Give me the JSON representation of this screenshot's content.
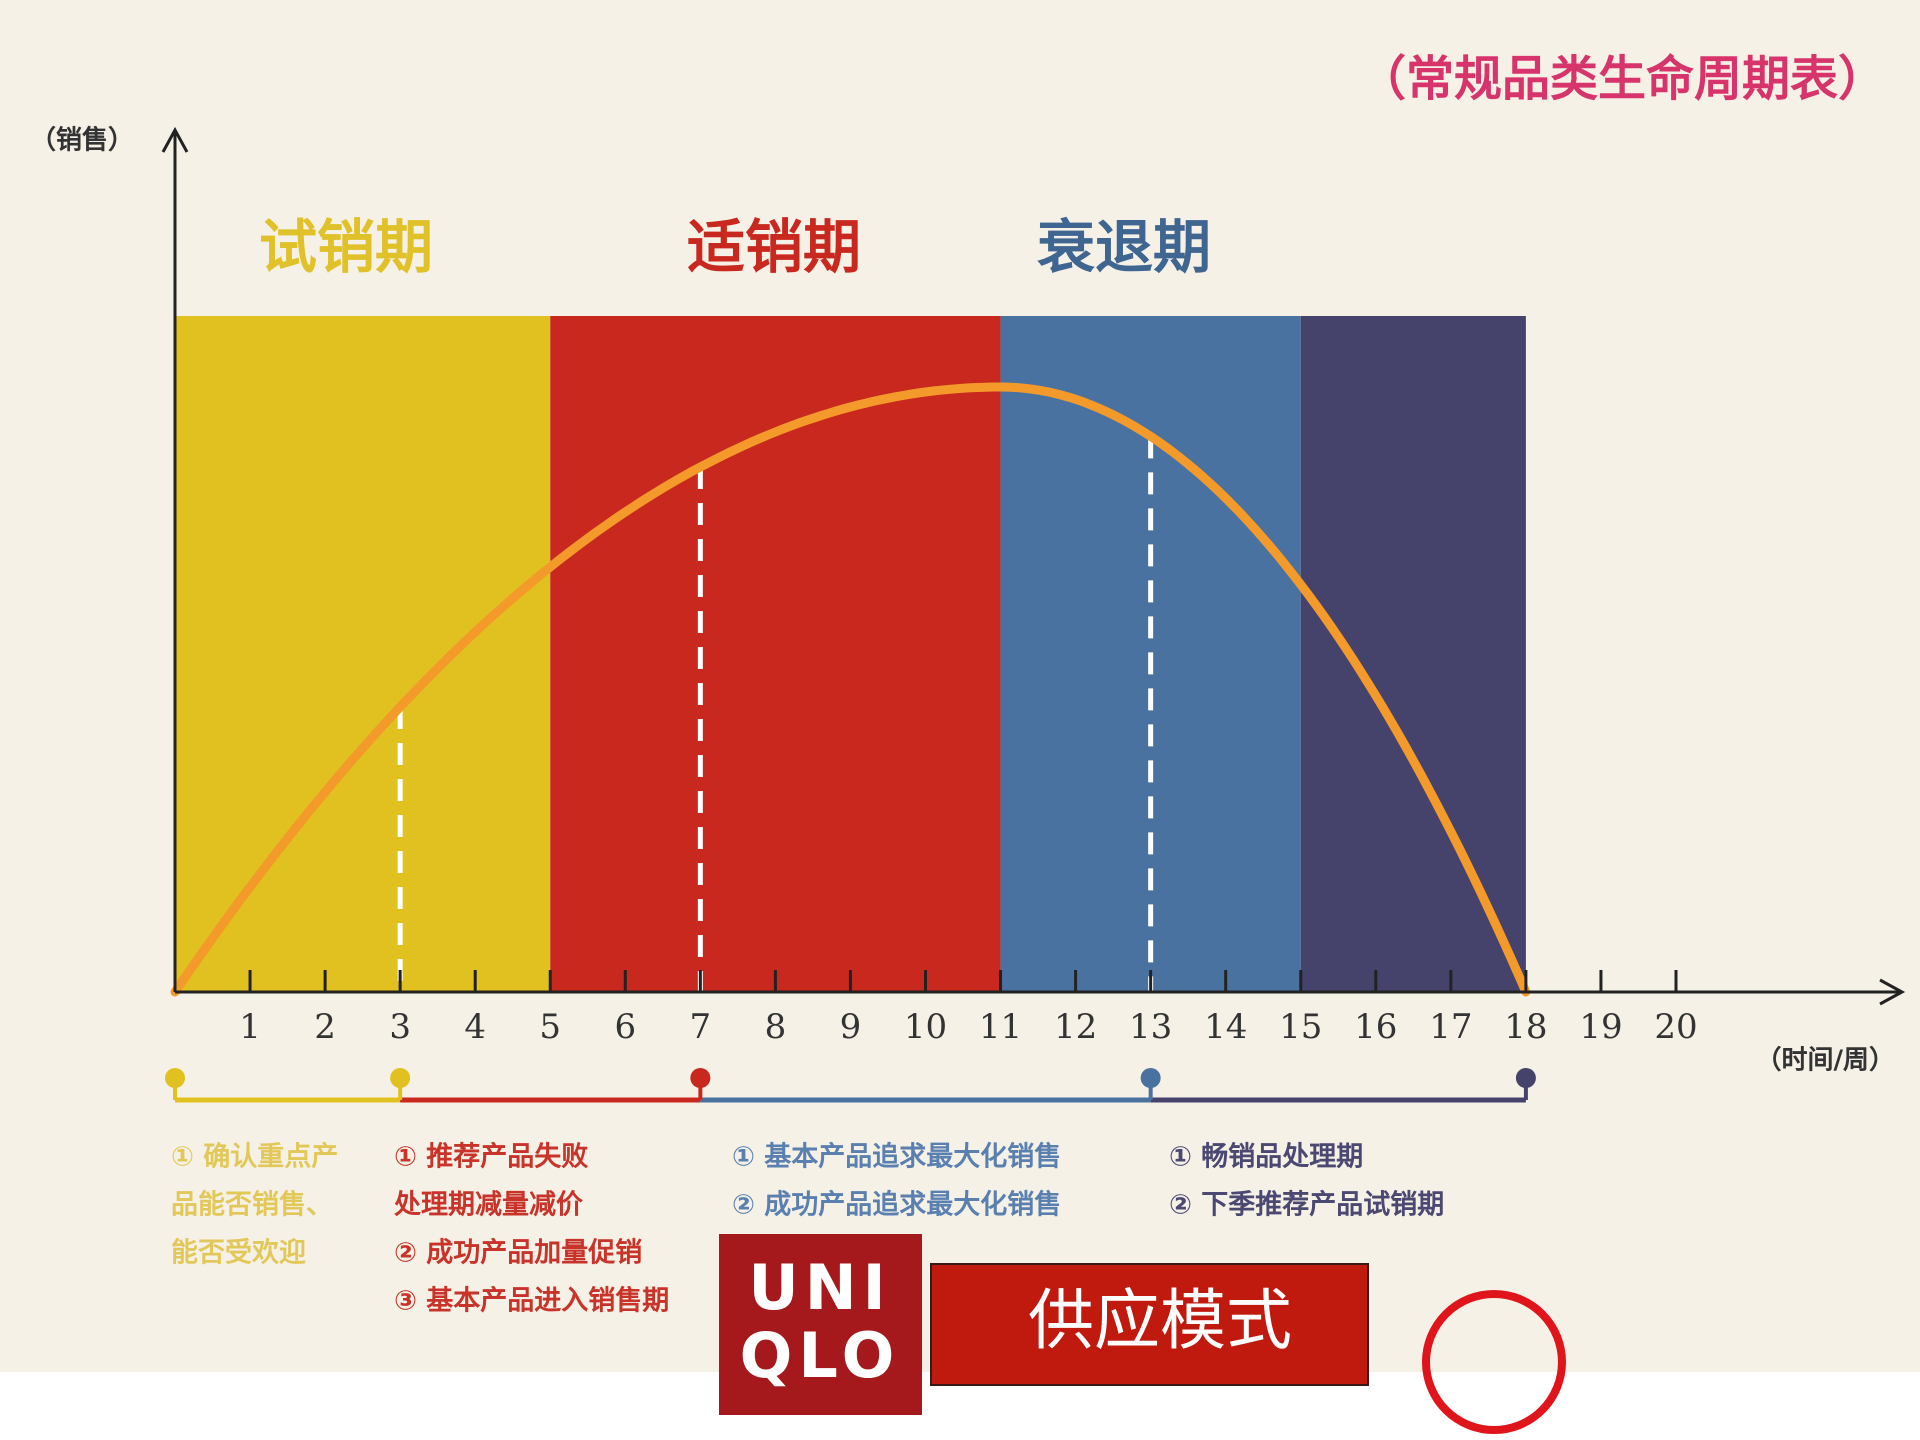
{
  "header": {
    "title": "（常规品类生命周期表）"
  },
  "axes": {
    "y_label": "（销售）",
    "x_label": "（时间/周）",
    "x_ticks": [
      1,
      2,
      3,
      4,
      5,
      6,
      7,
      8,
      9,
      10,
      11,
      12,
      13,
      14,
      15,
      16,
      17,
      18,
      19,
      20
    ]
  },
  "phases": [
    {
      "label": "试销期"
    },
    {
      "label": "适销期"
    },
    {
      "label": "衰退期"
    }
  ],
  "notes": [
    {
      "lines": [
        "① 确认重点产",
        "品能否销售、",
        "能否受欢迎"
      ]
    },
    {
      "lines": [
        "① 推荐产品失败",
        "处理期减量减价",
        "② 成功产品加量促销",
        "③ 基本产品进入销售期"
      ]
    },
    {
      "lines": [
        "① 基本产品追求最大化销售",
        "② 成功产品追求最大化销售"
      ]
    },
    {
      "lines": [
        "① 畅销品处理期",
        "② 下季推荐产品试销期"
      ]
    }
  ],
  "logo": {
    "lines": [
      "UNI",
      "QLO"
    ]
  },
  "button": {
    "label": "供应模式"
  }
}
